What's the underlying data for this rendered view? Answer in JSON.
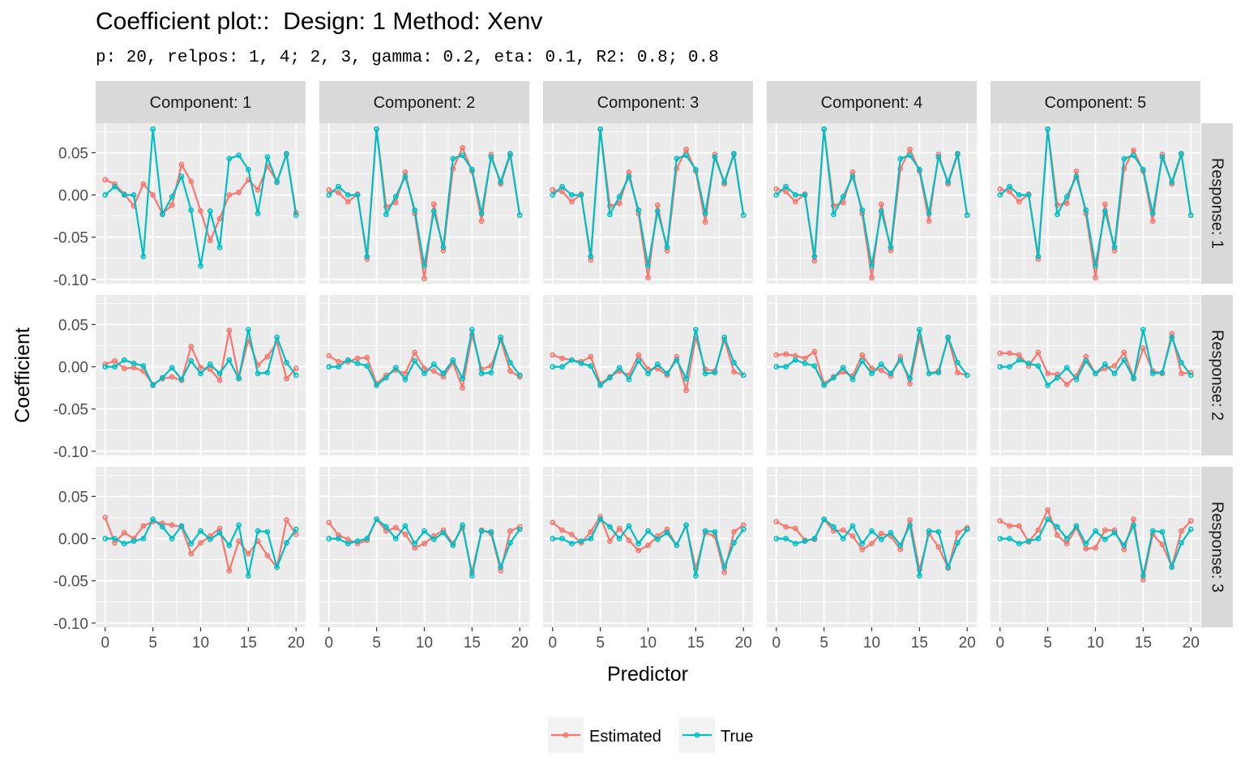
{
  "title": "Coefficient plot::  Design: 1 Method: Xenv",
  "subtitle": "p: 20, relpos: 1, 4; 2, 3, gamma: 0.2, eta: 0.1, R2: 0.8; 0.8",
  "colors": {
    "Estimated": "#F8766D",
    "True": "#00BFC4",
    "panel": "#EBEBEB",
    "grid": "#FFFFFF",
    "strip": "#D9D9D9"
  },
  "chart_data": {
    "type": "line",
    "xlabel": "Predictor",
    "ylabel": "Coefficient",
    "xlim": [
      -1,
      21
    ],
    "ylim": [
      -0.105,
      0.085
    ],
    "x_ticks": [
      0,
      5,
      10,
      15,
      20
    ],
    "y_ticks": [
      0.05,
      0.0,
      -0.05,
      -0.1
    ],
    "y_tick_labels": [
      "0.05",
      "0.00",
      "-0.05",
      "-0.10"
    ],
    "columns": [
      "Component: 1",
      "Component: 2",
      "Component: 3",
      "Component: 4",
      "Component: 5"
    ],
    "rows": [
      "Response: 1",
      "Response: 2",
      "Response: 3"
    ],
    "legend": [
      "Estimated",
      "True"
    ],
    "legend_position": "bottom",
    "x": [
      0,
      1,
      2,
      3,
      4,
      5,
      6,
      7,
      8,
      9,
      10,
      11,
      12,
      13,
      14,
      15,
      16,
      17,
      18,
      19,
      20
    ],
    "true": [
      [
        0.0,
        0.01,
        0.0,
        0.0,
        -0.073,
        0.078,
        -0.023,
        -0.002,
        0.022,
        -0.018,
        -0.084,
        -0.019,
        -0.062,
        0.043,
        0.047,
        0.03,
        -0.022,
        0.045,
        0.015,
        0.049,
        -0.024
      ],
      [
        0.0,
        0.0,
        0.008,
        0.004,
        0.001,
        -0.022,
        -0.013,
        -0.001,
        -0.015,
        0.007,
        -0.008,
        0.003,
        -0.008,
        0.008,
        -0.014,
        0.044,
        -0.008,
        -0.007,
        0.035,
        0.005,
        -0.01
      ],
      [
        0.0,
        0.0,
        -0.006,
        -0.003,
        0.0,
        0.023,
        0.014,
        0.0,
        0.015,
        -0.006,
        0.009,
        -0.001,
        0.007,
        -0.008,
        0.016,
        -0.044,
        0.009,
        0.008,
        -0.034,
        -0.005,
        0.011
      ]
    ],
    "estimated": [
      [
        [
          0.018,
          0.013,
          0.001,
          -0.013,
          0.013,
          0.0,
          -0.022,
          -0.012,
          0.036,
          0.016,
          -0.019,
          -0.054,
          -0.028,
          0.0,
          0.003,
          0.018,
          0.006,
          0.034,
          0.016,
          0.048,
          -0.021
        ],
        [
          0.003,
          0.007,
          -0.002,
          -0.001,
          -0.005,
          -0.021,
          -0.014,
          -0.012,
          -0.016,
          0.024,
          -0.001,
          -0.003,
          -0.016,
          0.043,
          -0.013,
          0.032,
          0.002,
          0.012,
          0.029,
          -0.014,
          -0.002
        ],
        [
          0.025,
          -0.005,
          0.007,
          0.0,
          0.015,
          0.02,
          0.018,
          0.016,
          0.014,
          -0.018,
          -0.005,
          0.003,
          0.012,
          -0.038,
          -0.003,
          -0.018,
          -0.003,
          -0.02,
          -0.034,
          0.022,
          0.005
        ]
      ],
      [
        [
          0.006,
          0.003,
          -0.008,
          0.001,
          -0.076,
          0.078,
          -0.014,
          -0.009,
          0.027,
          -0.022,
          -0.099,
          -0.011,
          -0.066,
          0.031,
          0.056,
          0.028,
          -0.031,
          0.048,
          0.013,
          0.047,
          -0.024
        ],
        [
          0.013,
          0.006,
          0.006,
          0.01,
          0.011,
          -0.02,
          -0.01,
          -0.004,
          -0.008,
          0.017,
          -0.002,
          -0.005,
          -0.012,
          0.005,
          -0.025,
          0.038,
          -0.003,
          0.001,
          0.032,
          -0.005,
          -0.012
        ],
        [
          0.019,
          0.004,
          -0.001,
          -0.006,
          -0.002,
          0.023,
          0.009,
          0.013,
          0.005,
          -0.011,
          -0.006,
          0.003,
          0.01,
          -0.006,
          0.013,
          -0.04,
          0.01,
          0.006,
          -0.038,
          0.009,
          0.014
        ]
      ],
      [
        [
          0.006,
          0.004,
          -0.008,
          0.001,
          -0.077,
          0.078,
          -0.013,
          -0.01,
          0.027,
          -0.022,
          -0.098,
          -0.012,
          -0.066,
          0.031,
          0.054,
          0.028,
          -0.032,
          0.048,
          0.013,
          0.048,
          -0.024
        ],
        [
          0.014,
          0.01,
          0.008,
          0.006,
          0.012,
          -0.02,
          -0.012,
          -0.005,
          -0.01,
          0.014,
          -0.003,
          -0.002,
          -0.01,
          0.012,
          -0.028,
          0.035,
          -0.003,
          -0.005,
          0.032,
          -0.006,
          -0.01
        ],
        [
          0.019,
          0.01,
          0.005,
          -0.005,
          0.008,
          0.026,
          -0.003,
          0.012,
          -0.002,
          -0.014,
          -0.008,
          0.003,
          0.011,
          -0.008,
          0.016,
          -0.036,
          0.007,
          0.003,
          -0.04,
          0.008,
          0.016
        ]
      ],
      [
        [
          0.007,
          0.004,
          -0.008,
          0.001,
          -0.078,
          0.078,
          -0.013,
          -0.009,
          0.027,
          -0.022,
          -0.098,
          -0.011,
          -0.066,
          0.031,
          0.054,
          0.028,
          -0.031,
          0.048,
          0.013,
          0.048,
          -0.024
        ],
        [
          0.014,
          0.015,
          0.013,
          0.01,
          0.018,
          -0.02,
          -0.012,
          -0.006,
          -0.011,
          0.014,
          -0.002,
          -0.004,
          -0.011,
          0.012,
          -0.02,
          0.036,
          -0.008,
          -0.005,
          0.034,
          -0.007,
          -0.01
        ],
        [
          0.02,
          0.014,
          0.012,
          -0.002,
          -0.001,
          0.023,
          0.009,
          0.01,
          0.003,
          -0.013,
          -0.006,
          0.006,
          0.003,
          -0.013,
          0.022,
          -0.037,
          0.006,
          -0.01,
          -0.035,
          0.007,
          0.013
        ]
      ],
      [
        [
          0.007,
          0.004,
          -0.008,
          0.001,
          -0.076,
          0.078,
          -0.012,
          -0.01,
          0.028,
          -0.022,
          -0.098,
          -0.011,
          -0.066,
          0.031,
          0.053,
          0.028,
          -0.031,
          0.048,
          0.013,
          0.048,
          -0.024
        ],
        [
          0.016,
          0.016,
          0.014,
          0.001,
          0.017,
          -0.008,
          -0.009,
          -0.021,
          -0.011,
          0.012,
          -0.008,
          -0.002,
          0.001,
          0.017,
          -0.013,
          0.022,
          -0.005,
          -0.008,
          0.039,
          -0.008,
          -0.007
        ],
        [
          0.021,
          0.015,
          0.015,
          -0.004,
          0.01,
          0.034,
          0.004,
          -0.006,
          0.013,
          -0.012,
          -0.011,
          0.01,
          0.01,
          -0.013,
          0.023,
          -0.049,
          0.005,
          -0.007,
          -0.033,
          0.009,
          0.021
        ]
      ]
    ]
  }
}
